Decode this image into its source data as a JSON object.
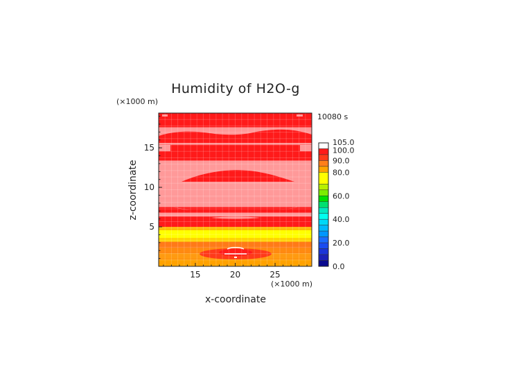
{
  "chart_data": {
    "type": "heatmap",
    "title": "Humidity of H2O-g",
    "xlabel": "x-coordinate",
    "ylabel": "z-coordinate",
    "x_unit": "(×1000 m)",
    "y_unit": "(×1000 m)",
    "time_label": "10080 s",
    "xlim": [
      10.4,
      29.6
    ],
    "ylim": [
      0,
      19.4
    ],
    "x_ticks": [
      "15",
      "20",
      "25"
    ],
    "y_ticks": [
      "5",
      "10",
      "15"
    ],
    "grid": true,
    "colorbar": {
      "labels": [
        "105.0",
        "100.0",
        "90.0",
        "80.0",
        "60.0",
        "40.0",
        "20.0",
        "0.0"
      ],
      "levels": [
        {
          "from": 100,
          "to": 105,
          "color": "#ffffff"
        },
        {
          "from": 95,
          "to": 100,
          "color": "#ff1a1a"
        },
        {
          "from": 90,
          "to": 95,
          "color": "#ff3a1a"
        },
        {
          "from": 85,
          "to": 90,
          "color": "#ff7f1a"
        },
        {
          "from": 80,
          "to": 85,
          "color": "#ffa500"
        },
        {
          "from": 70,
          "to": 80,
          "color": "#ffff00"
        },
        {
          "from": 65,
          "to": 70,
          "color": "#b8f000"
        },
        {
          "from": 60,
          "to": 65,
          "color": "#7cec00"
        },
        {
          "from": 55,
          "to": 60,
          "color": "#00e000"
        },
        {
          "from": 50,
          "to": 55,
          "color": "#00e070"
        },
        {
          "from": 45,
          "to": 50,
          "color": "#00e8c0"
        },
        {
          "from": 40,
          "to": 45,
          "color": "#00ffee"
        },
        {
          "from": 35,
          "to": 40,
          "color": "#00d8f8"
        },
        {
          "from": 30,
          "to": 35,
          "color": "#00b8ff"
        },
        {
          "from": 25,
          "to": 30,
          "color": "#0096ff"
        },
        {
          "from": 20,
          "to": 25,
          "color": "#1a6cff"
        },
        {
          "from": 15,
          "to": 20,
          "color": "#1a4cf0"
        },
        {
          "from": 10,
          "to": 15,
          "color": "#1a34d8"
        },
        {
          "from": 5,
          "to": 10,
          "color": "#1a20b8"
        },
        {
          "from": 0,
          "to": 5,
          "color": "#0a0a90"
        }
      ]
    },
    "field_bands": [
      {
        "z0": 0.0,
        "z1": 0.4,
        "level": 84,
        "color": "#ffa500"
      },
      {
        "z0": 0.4,
        "z1": 0.9,
        "level": 86,
        "color": "#ffa200"
      },
      {
        "z0": 0.9,
        "z1": 1.7,
        "level": 88,
        "color": "#ff9a10"
      },
      {
        "z0": 1.7,
        "z1": 2.4,
        "level": 90,
        "color": "#ff8a10"
      },
      {
        "z0": 2.4,
        "z1": 3.1,
        "level": 91,
        "color": "#ff7a18"
      },
      {
        "z0": 3.1,
        "z1": 3.6,
        "level": 80,
        "color": "#ffd400"
      },
      {
        "z0": 3.6,
        "z1": 4.6,
        "level": 75,
        "color": "#ffff00"
      },
      {
        "z0": 4.6,
        "z1": 5.0,
        "level": 82,
        "color": "#ffb800"
      },
      {
        "z0": 5.0,
        "z1": 6.3,
        "level": 98,
        "color": "#ff1a1a"
      },
      {
        "z0": 6.3,
        "z1": 6.8,
        "level": 100,
        "color": "#ff9999"
      },
      {
        "z0": 6.8,
        "z1": 7.5,
        "level": 98,
        "color": "#ff1a1a"
      },
      {
        "z0": 7.5,
        "z1": 8.6,
        "level": 100,
        "color": "#ff9999"
      },
      {
        "z0": 8.6,
        "z1": 13.4,
        "level": 100,
        "color": "#ff9999"
      },
      {
        "z0": 13.4,
        "z1": 15.4,
        "level": 98,
        "color": "#ff1a1a"
      },
      {
        "z0": 15.4,
        "z1": 17.6,
        "level": 100,
        "color": "#ff9999"
      },
      {
        "z0": 17.6,
        "z1": 19.4,
        "level": 98,
        "color": "#ff1a1a"
      }
    ]
  }
}
